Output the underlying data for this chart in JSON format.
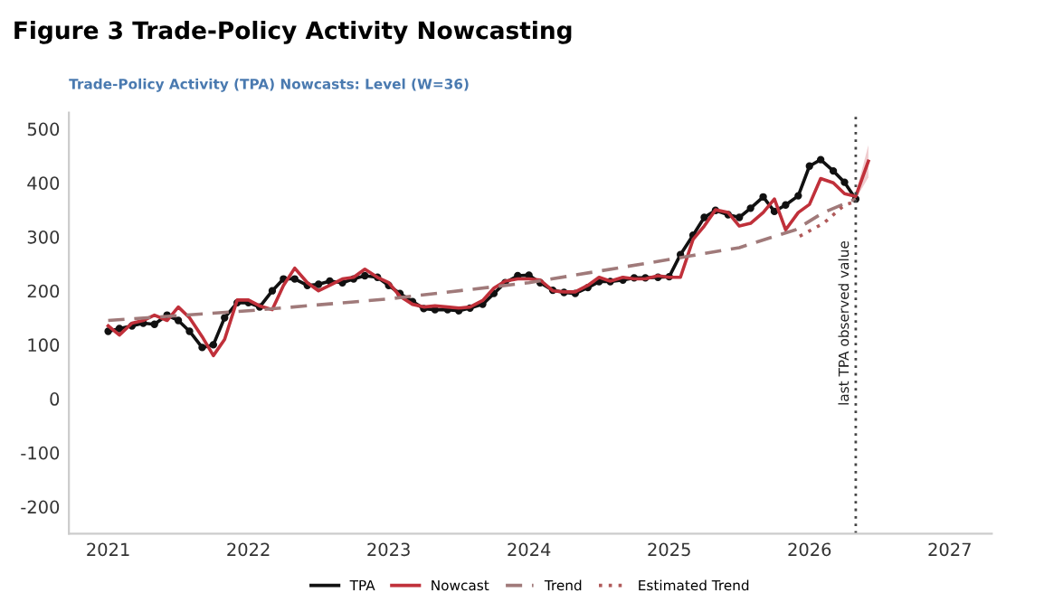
{
  "chart_data": {
    "type": "line",
    "title": "Figure 3 Trade-Policy Activity Nowcasting",
    "subtitle": "Trade-Policy Activity (TPA) Nowcasts: Level (W=36)",
    "xlim": [
      2020.72,
      2027.3
    ],
    "xticks": [
      2021,
      2022,
      2023,
      2024,
      2025,
      2026,
      2027
    ],
    "ylim": [
      -250,
      530
    ],
    "yticks": [
      -200,
      -100,
      0,
      100,
      200,
      300,
      400,
      500
    ],
    "grid": false,
    "legend": "bottom",
    "series": [
      {
        "name": "TPA",
        "color": "#111111",
        "marker": "circle",
        "line_style": "solid",
        "x": [
          2021.0,
          2021.08,
          2021.17,
          2021.25,
          2021.33,
          2021.42,
          2021.5,
          2021.58,
          2021.67,
          2021.75,
          2021.83,
          2021.92,
          2022.0,
          2022.08,
          2022.17,
          2022.25,
          2022.33,
          2022.42,
          2022.5,
          2022.58,
          2022.67,
          2022.75,
          2022.83,
          2022.92,
          2023.0,
          2023.08,
          2023.17,
          2023.25,
          2023.33,
          2023.42,
          2023.5,
          2023.58,
          2023.67,
          2023.75,
          2023.83,
          2023.92,
          2024.0,
          2024.08,
          2024.17,
          2024.25,
          2024.33,
          2024.42,
          2024.5,
          2024.58,
          2024.67,
          2024.75,
          2024.83,
          2024.92,
          2025.0,
          2025.08,
          2025.17,
          2025.25,
          2025.33,
          2025.42,
          2025.5,
          2025.58,
          2025.67,
          2025.75,
          2025.83,
          2025.92,
          2026.0,
          2026.08,
          2026.17,
          2026.25,
          2026.33
        ],
        "values": [
          125,
          130,
          135,
          140,
          138,
          155,
          145,
          125,
          95,
          100,
          150,
          178,
          178,
          170,
          200,
          222,
          222,
          210,
          212,
          218,
          215,
          222,
          228,
          225,
          210,
          195,
          180,
          167,
          165,
          165,
          163,
          168,
          175,
          195,
          215,
          228,
          229,
          215,
          201,
          197,
          195,
          206,
          217,
          217,
          220,
          224,
          224,
          225,
          226,
          267,
          303,
          336,
          349,
          341,
          336,
          353,
          374,
          347,
          359,
          376,
          431,
          443,
          422,
          401,
          370
        ]
      },
      {
        "name": "Nowcast",
        "color": "#c0303a",
        "marker": "none",
        "line_style": "solid",
        "x": [
          2021.0,
          2021.08,
          2021.17,
          2021.25,
          2021.33,
          2021.42,
          2021.5,
          2021.58,
          2021.67,
          2021.75,
          2021.83,
          2021.92,
          2022.0,
          2022.08,
          2022.17,
          2022.25,
          2022.33,
          2022.42,
          2022.5,
          2022.58,
          2022.67,
          2022.75,
          2022.83,
          2022.92,
          2023.0,
          2023.08,
          2023.17,
          2023.25,
          2023.33,
          2023.42,
          2023.5,
          2023.58,
          2023.67,
          2023.75,
          2023.83,
          2023.92,
          2024.0,
          2024.08,
          2024.17,
          2024.25,
          2024.33,
          2024.42,
          2024.5,
          2024.58,
          2024.67,
          2024.75,
          2024.83,
          2024.92,
          2025.0,
          2025.08,
          2025.17,
          2025.25,
          2025.33,
          2025.42,
          2025.5,
          2025.58,
          2025.67,
          2025.75,
          2025.83,
          2025.92,
          2026.0,
          2026.08,
          2026.17,
          2026.25,
          2026.33,
          2026.42
        ],
        "values": [
          135,
          118,
          140,
          145,
          155,
          145,
          170,
          150,
          115,
          80,
          110,
          183,
          183,
          172,
          165,
          210,
          242,
          215,
          200,
          210,
          222,
          225,
          240,
          225,
          215,
          190,
          175,
          170,
          172,
          170,
          168,
          170,
          182,
          205,
          218,
          222,
          222,
          220,
          200,
          198,
          198,
          210,
          225,
          218,
          225,
          222,
          222,
          228,
          225,
          225,
          295,
          320,
          350,
          345,
          320,
          325,
          345,
          370,
          313,
          345,
          360,
          408,
          400,
          380,
          375,
          440
        ],
        "lower": [
          null,
          null,
          null,
          null,
          null,
          null,
          null,
          null,
          null,
          null,
          null,
          null,
          null,
          null,
          null,
          null,
          null,
          null,
          null,
          null,
          null,
          null,
          null,
          null,
          null,
          null,
          null,
          null,
          null,
          null,
          null,
          null,
          null,
          null,
          null,
          null,
          null,
          null,
          null,
          null,
          null,
          null,
          null,
          null,
          null,
          null,
          null,
          null,
          null,
          null,
          null,
          null,
          null,
          null,
          null,
          null,
          null,
          null,
          null,
          null,
          null,
          null,
          null,
          null,
          370,
          410
        ],
        "upper": [
          null,
          null,
          null,
          null,
          null,
          null,
          null,
          null,
          null,
          null,
          null,
          null,
          null,
          null,
          null,
          null,
          null,
          null,
          null,
          null,
          null,
          null,
          null,
          null,
          null,
          null,
          null,
          null,
          null,
          null,
          null,
          null,
          null,
          null,
          null,
          null,
          null,
          null,
          null,
          null,
          null,
          null,
          null,
          null,
          null,
          null,
          null,
          null,
          null,
          null,
          null,
          null,
          null,
          null,
          null,
          null,
          null,
          null,
          null,
          null,
          null,
          null,
          null,
          null,
          380,
          470
        ]
      },
      {
        "name": "Trend",
        "color": "#a07a7a",
        "marker": "none",
        "line_style": "dashed",
        "x": [
          2021.0,
          2022.0,
          2023.0,
          2024.0,
          2025.0,
          2025.5,
          2025.9,
          2026.1,
          2026.33
        ],
        "values": [
          145,
          163,
          185,
          215,
          258,
          280,
          313,
          345,
          370
        ]
      },
      {
        "name": "Estimated Trend",
        "color": "#b05a5a",
        "marker": "none",
        "line_style": "dotted",
        "x": [
          2025.93,
          2026.1,
          2026.25,
          2026.33
        ],
        "values": [
          301,
          325,
          359,
          365
        ]
      }
    ],
    "ref_lines": [
      {
        "axis": "x",
        "value": 2026.33,
        "label": "last TPA observed value",
        "color": "#444444",
        "line_style": "dotted"
      }
    ]
  }
}
